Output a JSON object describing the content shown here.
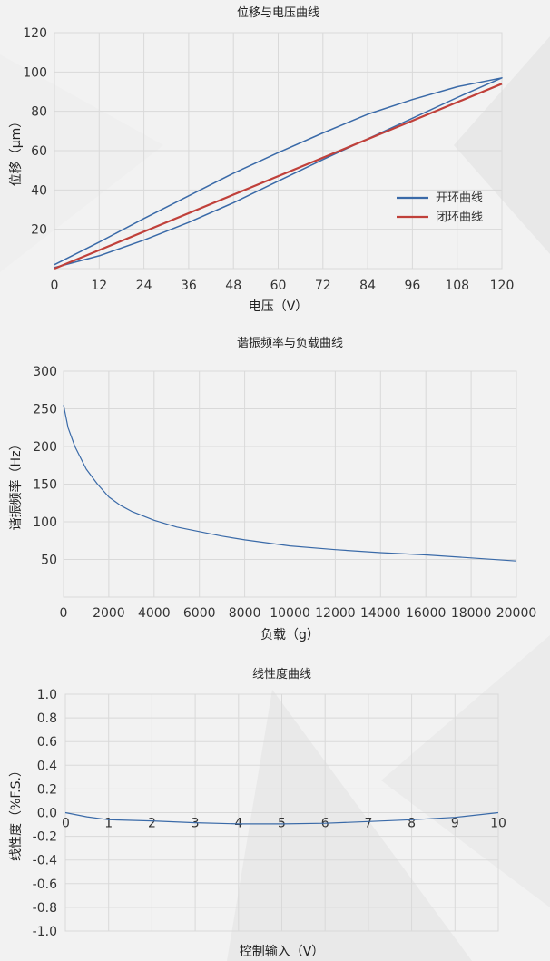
{
  "chart_data": [
    {
      "type": "line",
      "title": "位移与电压曲线",
      "xlabel": "电压（V）",
      "ylabel": "位移（μm）",
      "xlim": [
        0,
        120
      ],
      "ylim": [
        0,
        120
      ],
      "xticks": [
        0,
        12,
        24,
        36,
        48,
        60,
        72,
        84,
        96,
        108,
        120
      ],
      "yticks": [
        20,
        40,
        60,
        80,
        100,
        120
      ],
      "grid": true,
      "legend_position": "right",
      "series": [
        {
          "name": "开环曲线",
          "color": "#3a6aa8",
          "x": [
            0,
            12,
            24,
            36,
            48,
            60,
            72,
            84,
            96,
            108,
            120,
            108,
            96,
            84,
            72,
            60,
            48,
            36,
            24,
            12,
            0
          ],
          "y": [
            0.5,
            6.5,
            14.5,
            23.5,
            33.5,
            44.5,
            55.5,
            66,
            76.5,
            87,
            97,
            92.5,
            86,
            78.5,
            69,
            59,
            48.5,
            37,
            25.5,
            13.5,
            2
          ]
        },
        {
          "name": "闭环曲线",
          "color": "#c0403a",
          "x": [
            0,
            120
          ],
          "y": [
            0,
            94
          ]
        }
      ]
    },
    {
      "type": "line",
      "title": "谐振频率与负载曲线",
      "xlabel": "负载（g）",
      "ylabel": "谐振频率（Hz）",
      "xlim": [
        0,
        20000
      ],
      "ylim": [
        0,
        300
      ],
      "xticks": [
        0,
        2000,
        4000,
        6000,
        8000,
        10000,
        12000,
        14000,
        16000,
        18000,
        20000
      ],
      "yticks": [
        50,
        100,
        150,
        200,
        250,
        300
      ],
      "grid": true,
      "series": [
        {
          "color": "#3a6aa8",
          "x": [
            0,
            200,
            500,
            1000,
            1500,
            2000,
            2500,
            3000,
            4000,
            5000,
            6000,
            7000,
            8000,
            10000,
            12000,
            14000,
            16000,
            18000,
            20000
          ],
          "y": [
            255,
            225,
            200,
            170,
            150,
            133,
            122,
            114,
            102,
            93,
            87,
            81,
            76,
            68,
            63,
            59,
            56,
            52,
            48
          ]
        }
      ]
    },
    {
      "type": "line",
      "title": "线性度曲线",
      "xlabel": "控制输入（V）",
      "ylabel": "线性度（%F.S.）",
      "xlim": [
        0,
        10
      ],
      "ylim": [
        -1.0,
        1.0
      ],
      "xticks": [
        0,
        1,
        2,
        3,
        4,
        5,
        6,
        7,
        8,
        9,
        10
      ],
      "yticks": [
        1.0,
        0.8,
        0.6,
        0.4,
        0.2,
        0.0,
        -0.2,
        -0.4,
        -0.6,
        -0.8,
        -1.0
      ],
      "ytick_labels": [
        "1.0",
        "0.8",
        "0.6",
        "0.4",
        "0.2",
        "0.0",
        "-0.2",
        "-0.4",
        "-0.6",
        "-0.8",
        "-1.0"
      ],
      "grid": true,
      "series": [
        {
          "color": "#3a6aa8",
          "x": [
            0,
            0.5,
            1,
            2,
            3,
            4,
            5,
            6,
            7,
            8,
            9,
            10
          ],
          "y": [
            0,
            -0.035,
            -0.06,
            -0.07,
            -0.085,
            -0.095,
            -0.095,
            -0.09,
            -0.075,
            -0.06,
            -0.04,
            0
          ]
        }
      ]
    }
  ]
}
